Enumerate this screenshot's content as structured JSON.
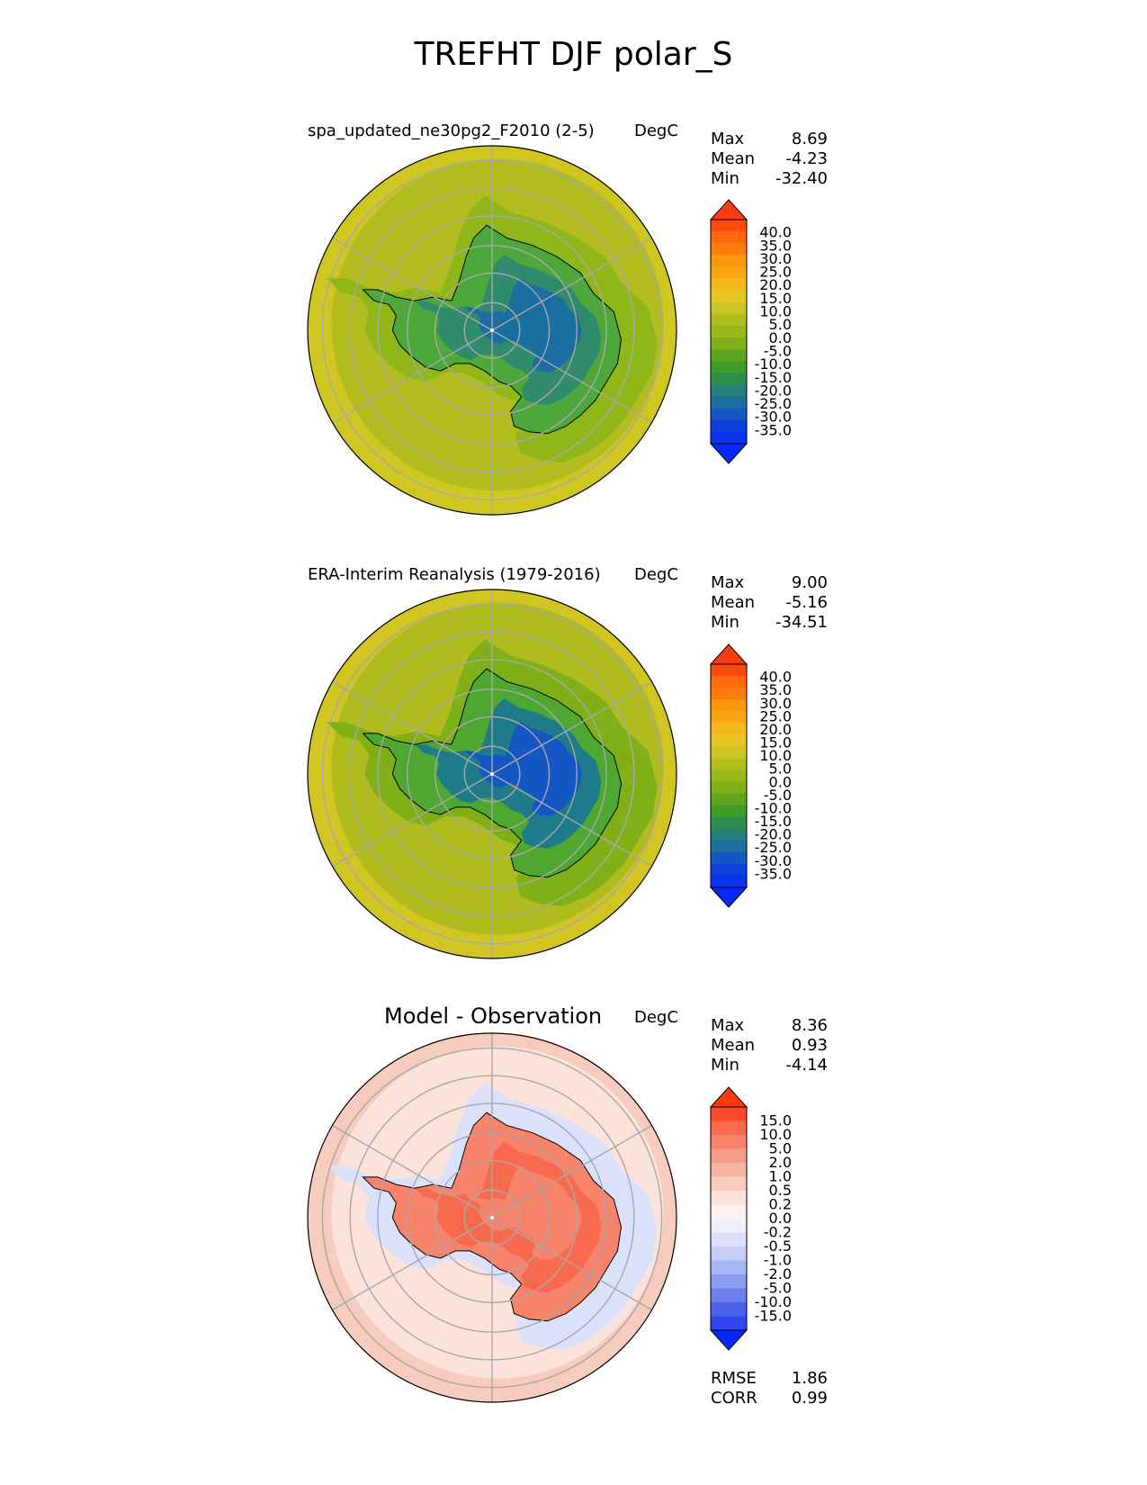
{
  "title": "TREFHT DJF polar_S",
  "panels": [
    {
      "title": "spa_updated_ne30pg2_F2010 (2-5)",
      "units": "DegC",
      "stats": [
        {
          "label": "Max",
          "value": "8.69"
        },
        {
          "label": "Mean",
          "value": "-4.23"
        },
        {
          "label": "Min",
          "value": "-32.40"
        }
      ],
      "colorbar": {
        "labels": [
          "40.0",
          "35.0",
          "30.0",
          "25.0",
          "20.0",
          "15.0",
          "10.0",
          "5.0",
          "0.0",
          "-5.0",
          "-10.0",
          "-15.0",
          "-20.0",
          "-25.0",
          "-30.0",
          "-35.0"
        ],
        "colors": [
          "#fe3a12",
          "#fe4a0f",
          "#fe6a0c",
          "#fe7d0a",
          "#fd970b",
          "#f8a712",
          "#f3b81a",
          "#e8c425",
          "#cbc525",
          "#b0be1e",
          "#98b81a",
          "#7fb018",
          "#5ea61f",
          "#3f9c24",
          "#2f8d4c",
          "#26807a",
          "#1a6fa0",
          "#1356c4",
          "#0d40dd",
          "#0a33f0",
          "#0628ff"
        ]
      },
      "map": {
        "ocean": "#b3bd1f",
        "outer_ring": "#cfc622",
        "coast_zone": "#8fb719",
        "land_edge": "#4ea73a",
        "land_mid": "#2f8b6c",
        "land_core": "#1a6fa0"
      }
    },
    {
      "title": "ERA-Interim Reanalysis (1979-2016)",
      "units": "DegC",
      "stats": [
        {
          "label": "Max",
          "value": "9.00"
        },
        {
          "label": "Mean",
          "value": "-5.16"
        },
        {
          "label": "Min",
          "value": "-34.51"
        }
      ],
      "colorbar": {
        "labels": [
          "40.0",
          "35.0",
          "30.0",
          "25.0",
          "20.0",
          "15.0",
          "10.0",
          "5.0",
          "0.0",
          "-5.0",
          "-10.0",
          "-15.0",
          "-20.0",
          "-25.0",
          "-30.0",
          "-35.0"
        ],
        "colors": [
          "#fe3a12",
          "#fe4a0f",
          "#fe6a0c",
          "#fe7d0a",
          "#fd970b",
          "#f8a712",
          "#f3b81a",
          "#e8c425",
          "#cbc525",
          "#b0be1e",
          "#98b81a",
          "#7fb018",
          "#5ea61f",
          "#3f9c24",
          "#2f8d4c",
          "#26807a",
          "#1a6fa0",
          "#1356c4",
          "#0d40dd",
          "#0a33f0",
          "#0628ff"
        ]
      },
      "map": {
        "ocean": "#b0bc1e",
        "outer_ring": "#d0c522",
        "coast_zone": "#7fb018",
        "land_edge": "#4ea731",
        "land_mid": "#1f7a8a",
        "land_core": "#1356c4"
      }
    },
    {
      "title": "Model - Observation",
      "units": "DegC",
      "stats": [
        {
          "label": "Max",
          "value": "8.36"
        },
        {
          "label": "Mean",
          "value": "0.93"
        },
        {
          "label": "Min",
          "value": "-4.14"
        }
      ],
      "extra_stats": [
        {
          "label": "RMSE",
          "value": "1.86"
        },
        {
          "label": "CORR",
          "value": "0.99"
        }
      ],
      "colorbar": {
        "labels": [
          "15.0",
          "10.0",
          "5.0",
          "2.0",
          "1.0",
          "0.5",
          "0.2",
          "0.0",
          "-0.2",
          "-0.5",
          "-1.0",
          "-2.0",
          "-5.0",
          "-10.0",
          "-15.0"
        ],
        "colors": [
          "#fe3a12",
          "#fb4a2a",
          "#f86a4e",
          "#f6836a",
          "#f49c85",
          "#f5b3a2",
          "#f8cbbf",
          "#fbe3dc",
          "#fdf2ee",
          "#eef0fc",
          "#dbe1fa",
          "#c3cdf7",
          "#a8b6f4",
          "#8b9cf1",
          "#6e80ee",
          "#4d62ea",
          "#2f46f0",
          "#0628ff"
        ]
      },
      "map": {
        "ocean": "#fbe3dc",
        "outer_ring": "#f8cbbf",
        "coast_zone": "#dbe1fa",
        "land_edge": "#f6836a",
        "land_mid": "#f86a4e",
        "land_core": "#f6836a"
      }
    }
  ]
}
